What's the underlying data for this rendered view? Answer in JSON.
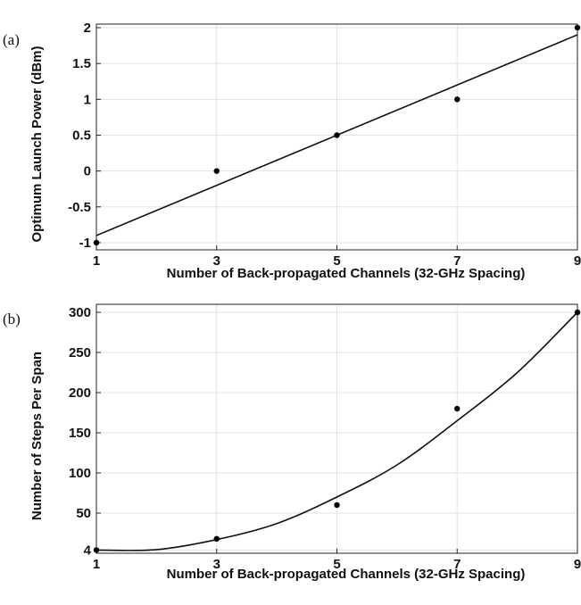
{
  "chart_data": [
    {
      "type": "scatter",
      "panel_label": "(a)",
      "xlabel": "Number of Back-propagated Channels (32-GHz Spacing)",
      "ylabel": "Optimum Launch Power (dBm)",
      "xlim": [
        1,
        9
      ],
      "ylim": [
        -1.1,
        2.05
      ],
      "xticks": [
        1,
        3,
        5,
        7,
        9
      ],
      "xtick_labels": [
        "1",
        "3",
        "5",
        "7",
        "9"
      ],
      "yticks": [
        -1,
        -0.5,
        0,
        0.5,
        1,
        1.5,
        2
      ],
      "ytick_labels": [
        "-1",
        "-0.5",
        "0",
        "0.5",
        "1",
        "1.5",
        "2"
      ],
      "grid": true,
      "points": [
        {
          "x": 1,
          "y": -1
        },
        {
          "x": 3,
          "y": 0
        },
        {
          "x": 5,
          "y": 0.5
        },
        {
          "x": 7,
          "y": 1
        },
        {
          "x": 9,
          "y": 2
        }
      ],
      "fit": {
        "kind": "linear",
        "x": [
          1,
          9
        ],
        "y": [
          -0.9,
          1.9
        ]
      }
    },
    {
      "type": "scatter",
      "panel_label": "(b)",
      "xlabel": "Number of Back-propagated Channels (32-GHz Spacing)",
      "ylabel": "Number of Steps Per Span",
      "xlim": [
        1,
        9
      ],
      "ylim": [
        0,
        310
      ],
      "xticks": [
        1,
        3,
        5,
        7,
        9
      ],
      "xtick_labels": [
        "1",
        "3",
        "5",
        "7",
        "9"
      ],
      "yticks": [
        4,
        50,
        100,
        150,
        200,
        250,
        300
      ],
      "ytick_labels": [
        "4",
        "50",
        "100",
        "150",
        "200",
        "250",
        "300"
      ],
      "grid": true,
      "points": [
        {
          "x": 1,
          "y": 4
        },
        {
          "x": 3,
          "y": 18
        },
        {
          "x": 5,
          "y": 60
        },
        {
          "x": 7,
          "y": 180
        },
        {
          "x": 9,
          "y": 300
        }
      ],
      "fit": {
        "kind": "quadratic",
        "x": [
          1,
          2,
          3,
          4,
          5,
          6,
          7,
          8,
          9
        ],
        "y": [
          4,
          4.5,
          17,
          37,
          70,
          110,
          165,
          225,
          300
        ]
      }
    }
  ]
}
